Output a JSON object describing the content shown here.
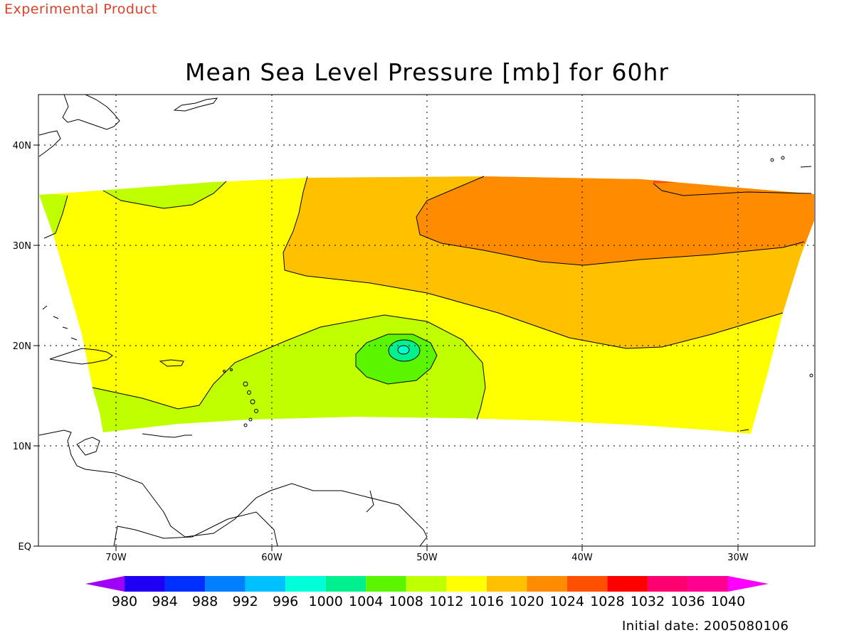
{
  "header": {
    "product_tag": "Experimental Product"
  },
  "map": {
    "title": "Mean Sea Level Pressure [mb] for 60hr",
    "variable_units": "mb",
    "forecast_hour": "60hr",
    "lat_labels": [
      "EQ",
      "10N",
      "20N",
      "30N",
      "40N"
    ],
    "lon_labels": [
      "70W",
      "60W",
      "50W",
      "40W",
      "30W"
    ],
    "extent": {
      "lon_min": -75,
      "lon_max": -25,
      "lat_min": 0,
      "lat_max": 45
    },
    "grid": "dotted",
    "pressure_regions": [
      {
        "label": "1012-1016",
        "color": "#ffff00"
      },
      {
        "label": "1016-1020",
        "color": "#ffc000"
      },
      {
        "label": "1020-1024",
        "color": "#ff8c00"
      },
      {
        "label": "1024-1028",
        "color": "#ff5000"
      },
      {
        "label": "1008-1012",
        "color": "#bfff00"
      },
      {
        "label": "1004-1008",
        "color": "#5cf500"
      },
      {
        "label": "1000-1004",
        "color": "#00f090"
      },
      {
        "label": "996-1000",
        "color": "#00ffd0"
      }
    ]
  },
  "colorbar": {
    "labels": [
      "980",
      "984",
      "988",
      "992",
      "996",
      "1000",
      "1004",
      "1008",
      "1012",
      "1016",
      "1020",
      "1024",
      "1028",
      "1032",
      "1036",
      "1040"
    ],
    "colors": [
      "#a000f5",
      "#2000f5",
      "#0030ff",
      "#0080ff",
      "#00c0ff",
      "#00ffd8",
      "#00f090",
      "#5cf500",
      "#bfff00",
      "#ffff00",
      "#ffc000",
      "#ff8c00",
      "#ff5000",
      "#ff0000",
      "#ff0070",
      "#ff0090",
      "#ff00ff"
    ]
  },
  "footer": {
    "initial_date": "Initial date: 2005080106"
  }
}
